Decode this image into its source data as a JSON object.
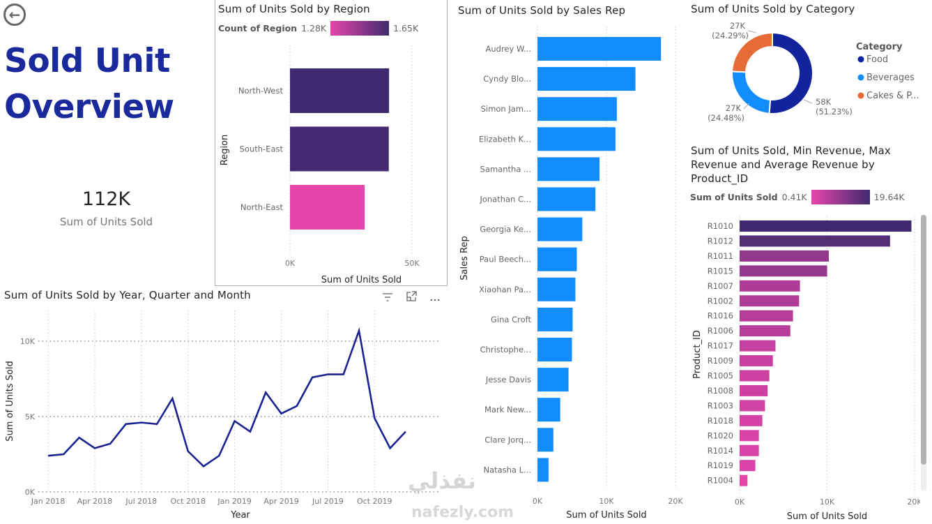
{
  "header": {
    "back_icon": "arrow-left-circle-icon",
    "title_line1": "Sold Unit",
    "title_line2": "Overview"
  },
  "kpi": {
    "value": "112K",
    "label": "Sum of Units Sold"
  },
  "colors": {
    "title": "#1a2a9c",
    "line": "#1a2390",
    "salesrep_bar": "#118dff",
    "gradient_low": "#e645ab",
    "gradient_high": "#3f2a6f",
    "food": "#12239e",
    "beverages": "#118dff",
    "cakes": "#e66c37"
  },
  "line_toolbar": {
    "filter_icon": "filter-icon",
    "focus_icon": "focus-mode-icon",
    "more_icon": "more-options-icon"
  },
  "watermark": {
    "text": "نفذلي",
    "url": "nafezly.com"
  },
  "chart_data": [
    {
      "id": "region",
      "type": "bar",
      "orientation": "horizontal",
      "title": "Sum of Units Sold by Region",
      "legend_title": "Count of Region",
      "legend_min": "1.28K",
      "legend_max": "1.65K",
      "categories": [
        "North-West",
        "South-East",
        "North-East"
      ],
      "values": [
        40.6,
        40.5,
        30.6
      ],
      "color_values": [
        1.65,
        1.64,
        1.28
      ],
      "unit": "K",
      "xlabel": "Sum of Units Sold",
      "ylabel": "Region",
      "xlim": [
        0,
        50
      ],
      "xticks": [
        "0K",
        "50K"
      ],
      "grid": true
    },
    {
      "id": "salesrep",
      "type": "bar",
      "orientation": "horizontal",
      "title": "Sum of Units Sold by Sales Rep",
      "categories": [
        "Audrey W...",
        "Cyndy Blo...",
        "Simon Jam...",
        "Elizabeth K...",
        "Samantha ...",
        "Jonathan C...",
        "Georgia Ke...",
        "Paul Beech...",
        "Xiaohan Pa...",
        "Gina Croft",
        "Christophe...",
        "Jesse Davis",
        "Mark New...",
        "Clare Jorq...",
        "Natasha L..."
      ],
      "values": [
        17.9,
        14.2,
        11.5,
        11.3,
        9.0,
        8.4,
        6.5,
        5.7,
        5.5,
        5.1,
        5.0,
        4.5,
        3.3,
        2.3,
        1.6
      ],
      "unit": "K",
      "xlabel": "Sum of Units Sold",
      "ylabel": "Sales Rep",
      "xlim": [
        0,
        20
      ],
      "xticks": [
        "0K",
        "10K",
        "20K"
      ],
      "grid": true
    },
    {
      "id": "category",
      "type": "pie",
      "donut": true,
      "title": "Sum of Units Sold by Category",
      "legend_title": "Category",
      "legend_position": "right",
      "categories": [
        "Food",
        "Beverages",
        "Cakes & P..."
      ],
      "values": [
        58,
        27,
        27
      ],
      "percentages": [
        51.23,
        24.48,
        24.29
      ],
      "labels": [
        {
          "value": "58K",
          "pct": "(51.23%)"
        },
        {
          "value": "27K",
          "pct": "(24.48%)"
        },
        {
          "value": "27K",
          "pct": "(24.29%)"
        }
      ]
    },
    {
      "id": "product",
      "type": "bar",
      "orientation": "horizontal",
      "title_lines": [
        "Sum of Units Sold, Min Revenue, Max",
        "Revenue and Average Revenue by",
        "Product_ID"
      ],
      "legend_title": "Sum of Units Sold",
      "legend_min": "0.41K",
      "legend_max": "19.64K",
      "categories": [
        "R1010",
        "R1012",
        "R1011",
        "R1015",
        "R1007",
        "R1002",
        "R1016",
        "R1006",
        "R1017",
        "R1009",
        "R1005",
        "R1008",
        "R1003",
        "R1018",
        "R1020",
        "R1014",
        "R1019",
        "R1004"
      ],
      "values": [
        19.64,
        17.2,
        10.2,
        10.0,
        6.9,
        6.8,
        6.1,
        5.8,
        4.1,
        3.8,
        3.4,
        3.2,
        2.9,
        2.6,
        2.2,
        2.2,
        1.8,
        0.9
      ],
      "unit": "K",
      "xlabel": "Sum of Units Sold",
      "ylabel": "Product_ID",
      "xlim": [
        0,
        20
      ],
      "xticks": [
        "0K",
        "10K",
        "20K"
      ],
      "grid": true
    },
    {
      "id": "timeline",
      "type": "line",
      "title": "Sum of Units Sold by Year, Quarter and Month",
      "x": [
        "Jan 2018",
        "Feb 2018",
        "Mar 2018",
        "Apr 2018",
        "May 2018",
        "Jun 2018",
        "Jul 2018",
        "Aug 2018",
        "Sep 2018",
        "Oct 2018",
        "Nov 2018",
        "Dec 2018",
        "Jan 2019",
        "Feb 2019",
        "Mar 2019",
        "Apr 2019",
        "May 2019",
        "Jun 2019",
        "Jul 2019",
        "Aug 2019",
        "Sep 2019",
        "Oct 2019",
        "Nov 2019",
        "Dec 2019"
      ],
      "values": [
        2.4,
        2.5,
        3.6,
        2.9,
        3.2,
        4.5,
        4.6,
        4.5,
        6.2,
        2.7,
        1.7,
        2.4,
        4.7,
        4.0,
        6.6,
        5.2,
        5.7,
        7.6,
        7.8,
        7.8,
        10.7,
        4.9,
        2.9,
        4.0
      ],
      "unit": "K",
      "xticks": [
        "Jan 2018",
        "Apr 2018",
        "Jul 2018",
        "Oct 2018",
        "Jan 2019",
        "Apr 2019",
        "Jul 2019",
        "Oct 2019"
      ],
      "yticks": [
        "0K",
        "5K",
        "10K"
      ],
      "ylim": [
        0,
        12
      ],
      "xlabel": "Year",
      "ylabel": "Sum of Units Sold",
      "grid": true
    }
  ]
}
